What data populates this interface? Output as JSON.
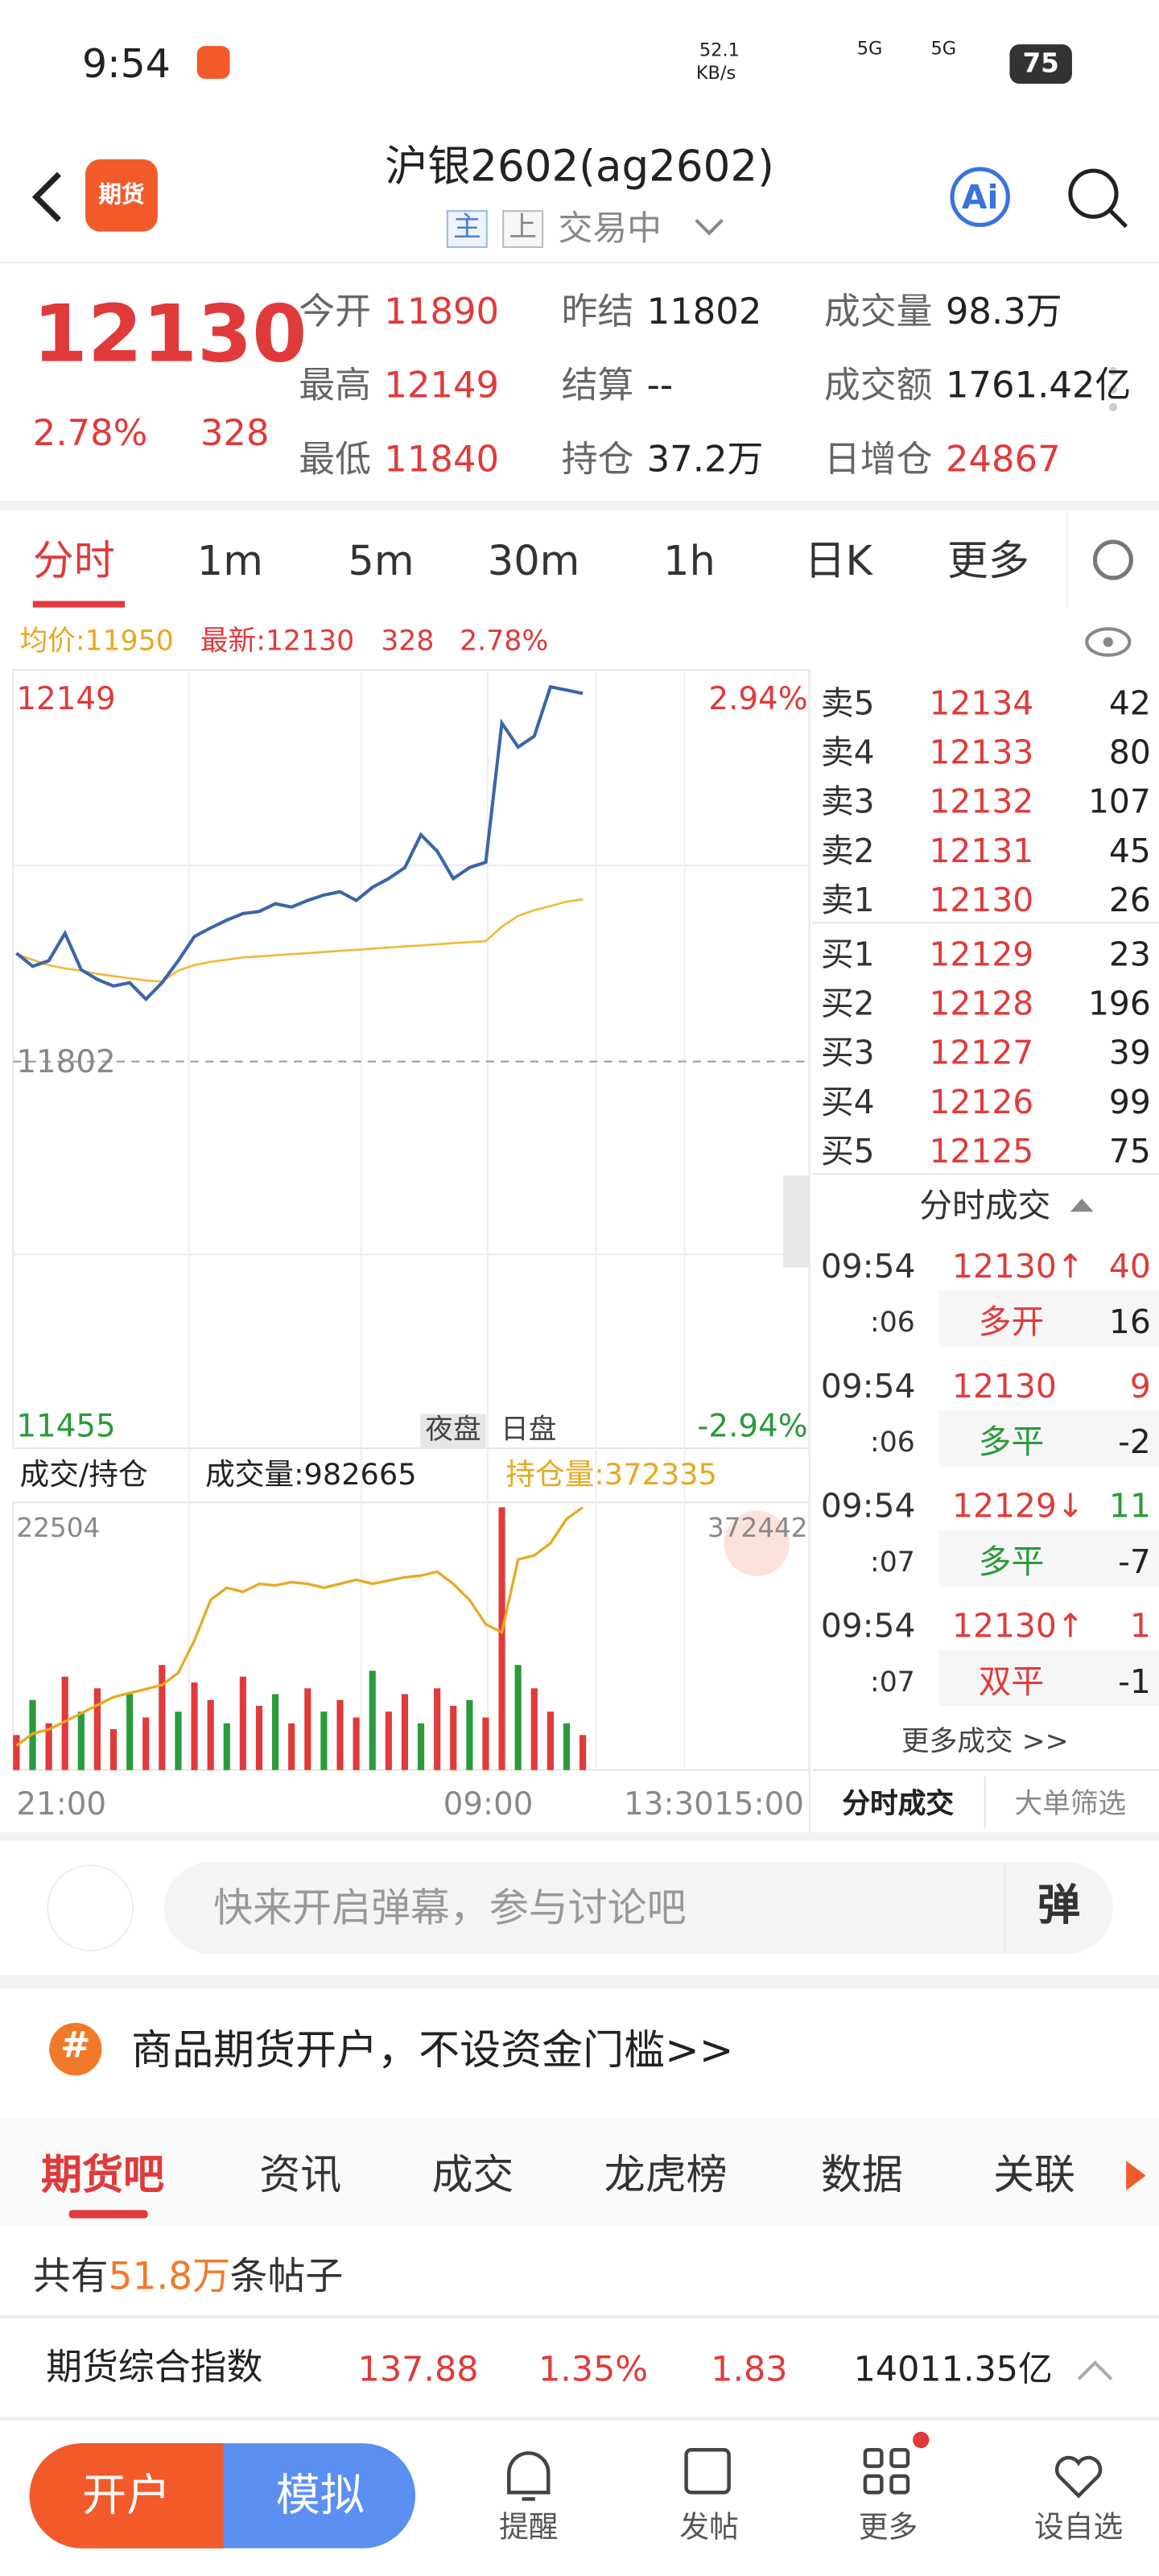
{
  "status": {
    "time": "9:54",
    "speed": "52.1",
    "speed_unit": "KB/s",
    "net1": "5G",
    "net2": "5G",
    "battery": "75"
  },
  "header": {
    "logo": "期货",
    "title": "沪银2602(ag2602)",
    "tags": [
      "主",
      "上"
    ],
    "state": "交易中",
    "ai": "Ai"
  },
  "quote": {
    "price": "12130",
    "change_pct": "2.78%",
    "change": "328",
    "fields": [
      {
        "label": "今开",
        "value": "11890",
        "color": "#e03a3a"
      },
      {
        "label": "昨结",
        "value": "11802",
        "color": "#222"
      },
      {
        "label": "成交量",
        "value": "98.3万",
        "color": "#222"
      },
      {
        "label": "最高",
        "value": "12149",
        "color": "#e03a3a"
      },
      {
        "label": "结算",
        "value": "--",
        "color": "#222"
      },
      {
        "label": "成交额",
        "value": "1761.42亿",
        "color": "#222"
      },
      {
        "label": "最低",
        "value": "11840",
        "color": "#e03a3a"
      },
      {
        "label": "持仓",
        "value": "37.2万",
        "color": "#222"
      },
      {
        "label": "日增仓",
        "value": "24867",
        "color": "#e03a3a"
      }
    ]
  },
  "tabs": [
    "分时",
    "1m",
    "5m",
    "30m",
    "1h",
    "日K",
    "更多"
  ],
  "info": {
    "avg": "均价:11950",
    "latest": "最新:12130",
    "change": "328",
    "change_pct": "2.78%"
  },
  "chart": {
    "ylim": [
      11455,
      12149
    ],
    "ref": 11802,
    "top_pct": "2.94%",
    "bottom_pct": "-2.94%",
    "sessions": [
      "夜盘",
      "日盘"
    ],
    "price": {
      "color": "#3a66a8",
      "values": [
        11901,
        11889,
        11894,
        11919,
        11886,
        11877,
        11871,
        11874,
        11859,
        11874,
        11894,
        11916,
        11924,
        11931,
        11937,
        11939,
        11946,
        11943,
        11949,
        11954,
        11957,
        11949,
        11961,
        11969,
        11979,
        12009,
        11994,
        11969,
        11979,
        11984,
        12111,
        12089,
        12099,
        12144,
        12141,
        12138,
        null,
        null,
        null,
        null,
        null,
        null,
        null,
        null,
        null,
        null,
        null,
        null,
        null,
        null
      ]
    },
    "avg": {
      "color": "#f0b93a",
      "values": [
        11900,
        11895,
        11890,
        11887,
        11885,
        11882,
        11880,
        11878,
        11876,
        11875,
        11885,
        11890,
        11893,
        11895,
        11897,
        11898,
        11899,
        11900,
        11901,
        11902,
        11903,
        11904,
        11905,
        11906,
        11907,
        11908,
        11909,
        11910,
        11911,
        11912,
        11925,
        11935,
        11940,
        11944,
        11948,
        11950,
        null,
        null,
        null,
        null,
        null,
        null,
        null,
        null,
        null,
        null,
        null,
        null,
        null,
        null
      ]
    },
    "x_labels": [
      "21:00",
      "09:00",
      "13:30",
      "15:00"
    ]
  },
  "volume": {
    "selector": "成交/持仓",
    "volume_label": "成交量:982665",
    "oi_label": "持仓量:372335",
    "ylim": [
      0,
      22504
    ],
    "values": [
      3000,
      6000,
      4000,
      8000,
      5000,
      7000,
      3500,
      6500,
      4500,
      9000,
      5000,
      7500,
      6000,
      4000,
      8000,
      5500,
      6500,
      4000,
      7000,
      5000,
      6000,
      4500,
      8500,
      5000,
      6500,
      4000,
      7000,
      5500,
      6000,
      4500,
      22504,
      9000,
      7000,
      5000,
      4000,
      3000
    ],
    "oi": {
      "ylim": [
        340000,
        372442
      ],
      "values": [
        343000,
        344500,
        345000,
        346000,
        347000,
        348000,
        349000,
        349500,
        350000,
        350500,
        352000,
        356000,
        361000,
        362500,
        362000,
        363000,
        362800,
        363200,
        363000,
        362500,
        363000,
        363500,
        363000,
        363400,
        363800,
        364000,
        364500,
        363000,
        361000,
        358000,
        357000,
        366000,
        366500,
        368000,
        371000,
        372442
      ]
    }
  },
  "orderbook": {
    "asks": [
      {
        "label": "卖5",
        "price": "12134",
        "qty": "42"
      },
      {
        "label": "卖4",
        "price": "12133",
        "qty": "80"
      },
      {
        "label": "卖3",
        "price": "12132",
        "qty": "107"
      },
      {
        "label": "卖2",
        "price": "12131",
        "qty": "45"
      },
      {
        "label": "卖1",
        "price": "12130",
        "qty": "26"
      }
    ],
    "bids": [
      {
        "label": "买1",
        "price": "12129",
        "qty": "23"
      },
      {
        "label": "买2",
        "price": "12128",
        "qty": "196"
      },
      {
        "label": "买3",
        "price": "12127",
        "qty": "39"
      },
      {
        "label": "买4",
        "price": "12126",
        "qty": "99"
      },
      {
        "label": "买5",
        "price": "12125",
        "qty": "75"
      }
    ]
  },
  "trades": {
    "title": "分时成交",
    "items": [
      {
        "time": "09:54",
        "sec": ":06",
        "price": "12130↑",
        "qty": "40",
        "type": "多开",
        "vol": "16",
        "price_color": "#e03a3a",
        "qty_color": "#e03a3a",
        "type_color": "#e03a3a"
      },
      {
        "time": "09:54",
        "sec": ":06",
        "price": "12130",
        "qty": "9",
        "type": "多平",
        "vol": "-2",
        "price_color": "#e03a3a",
        "qty_color": "#e03a3a",
        "type_color": "#2a9a3a"
      },
      {
        "time": "09:54",
        "sec": ":07",
        "price": "12129↓",
        "qty": "11",
        "type": "多平",
        "vol": "-7",
        "price_color": "#e03a3a",
        "qty_color": "#2a9a3a",
        "type_color": "#2a9a3a"
      },
      {
        "time": "09:54",
        "sec": ":07",
        "price": "12130↑",
        "qty": "1",
        "type": "双平",
        "vol": "-1",
        "price_color": "#e03a3a",
        "qty_color": "#e03a3a",
        "type_color": "#e03a3a"
      }
    ],
    "more": "更多成交 >>",
    "tabs": [
      "分时成交",
      "大单筛选"
    ]
  },
  "comment": {
    "placeholder": "快来开启弹幕，参与讨论吧",
    "danmu": "弹"
  },
  "banner": {
    "icon": "#",
    "text": "商品期货开户，不设资金门槛>>"
  },
  "tabs2": [
    "期货吧",
    "资讯",
    "成交",
    "龙虎榜",
    "数据",
    "关联"
  ],
  "posts": {
    "prefix": "共有",
    "count": "51.8万",
    "suffix": "条帖子"
  },
  "index": {
    "name": "期货综合指数",
    "value": "137.88",
    "pct": "1.35%",
    "change": "1.83",
    "amount": "14011.35亿"
  },
  "bottom": {
    "open": "开户",
    "sim": "模拟",
    "nav": [
      "提醒",
      "发帖",
      "更多",
      "设自选"
    ]
  }
}
